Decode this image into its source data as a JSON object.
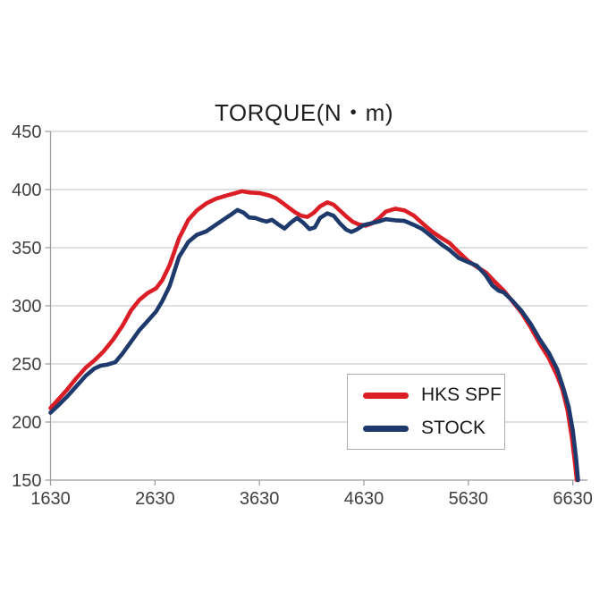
{
  "title": "TORQUE(N・m)",
  "colors": {
    "hks": "#db1e26",
    "stock": "#1e3a6c",
    "grid": "#c9cdd1",
    "axis": "#9b9ea2",
    "tick_text": "#404040",
    "legend_border": "#a9aeb4"
  },
  "legend": {
    "items": [
      {
        "label": "HKS SPF",
        "color_key": "hks"
      },
      {
        "label": "STOCK",
        "color_key": "stock"
      }
    ]
  },
  "chart_data": {
    "type": "line",
    "title": "TORQUE(N・m)",
    "xlabel": "",
    "ylabel": "",
    "xlim": [
      1630,
      6770
    ],
    "ylim": [
      150,
      450
    ],
    "x_ticks": [
      1630,
      2630,
      3630,
      4630,
      5630,
      6630
    ],
    "y_ticks": [
      150,
      200,
      250,
      300,
      350,
      400,
      450
    ],
    "grid": "horizontal",
    "legend_position": "lower-right",
    "series": [
      {
        "name": "HKS SPF",
        "color_key": "hks",
        "points": [
          [
            1630,
            212
          ],
          [
            1700,
            219
          ],
          [
            1790,
            228
          ],
          [
            1880,
            238
          ],
          [
            1970,
            247
          ],
          [
            2050,
            253
          ],
          [
            2140,
            261
          ],
          [
            2230,
            271
          ],
          [
            2320,
            283
          ],
          [
            2400,
            296
          ],
          [
            2480,
            305
          ],
          [
            2560,
            311
          ],
          [
            2640,
            315
          ],
          [
            2700,
            322
          ],
          [
            2770,
            335
          ],
          [
            2860,
            358
          ],
          [
            2950,
            374
          ],
          [
            3030,
            382
          ],
          [
            3120,
            388
          ],
          [
            3210,
            392
          ],
          [
            3300,
            394.5
          ],
          [
            3380,
            396.5
          ],
          [
            3460,
            398.5
          ],
          [
            3540,
            397.5
          ],
          [
            3630,
            397
          ],
          [
            3720,
            395
          ],
          [
            3790,
            392.5
          ],
          [
            3850,
            388.5
          ],
          [
            3910,
            384.5
          ],
          [
            3970,
            380.5
          ],
          [
            4030,
            377.5
          ],
          [
            4090,
            376.5
          ],
          [
            4150,
            380
          ],
          [
            4210,
            385.5
          ],
          [
            4280,
            389
          ],
          [
            4340,
            387
          ],
          [
            4400,
            382
          ],
          [
            4460,
            377
          ],
          [
            4520,
            372.5
          ],
          [
            4580,
            370
          ],
          [
            4650,
            369
          ],
          [
            4710,
            371
          ],
          [
            4770,
            375
          ],
          [
            4840,
            381
          ],
          [
            4930,
            383.5
          ],
          [
            5020,
            382
          ],
          [
            5110,
            377.5
          ],
          [
            5190,
            371
          ],
          [
            5280,
            364
          ],
          [
            5370,
            358.5
          ],
          [
            5450,
            354
          ],
          [
            5540,
            346
          ],
          [
            5630,
            338.5
          ],
          [
            5710,
            333.5
          ],
          [
            5800,
            328.5
          ],
          [
            5880,
            321
          ],
          [
            5970,
            313
          ],
          [
            6050,
            304
          ],
          [
            6140,
            294
          ],
          [
            6230,
            281
          ],
          [
            6310,
            268
          ],
          [
            6400,
            255
          ],
          [
            6480,
            240
          ],
          [
            6530,
            228
          ],
          [
            6580,
            210
          ],
          [
            6620,
            187
          ],
          [
            6650,
            165
          ],
          [
            6668,
            150
          ]
        ]
      },
      {
        "name": "STOCK",
        "color_key": "stock",
        "points": [
          [
            1630,
            208
          ],
          [
            1700,
            214
          ],
          [
            1790,
            222
          ],
          [
            1880,
            231
          ],
          [
            1970,
            240
          ],
          [
            2050,
            246
          ],
          [
            2110,
            248.5
          ],
          [
            2180,
            249.5
          ],
          [
            2250,
            251.5
          ],
          [
            2320,
            259
          ],
          [
            2400,
            269
          ],
          [
            2480,
            279
          ],
          [
            2560,
            287
          ],
          [
            2640,
            295
          ],
          [
            2700,
            304
          ],
          [
            2770,
            317
          ],
          [
            2860,
            342
          ],
          [
            2950,
            355
          ],
          [
            3030,
            361
          ],
          [
            3120,
            364
          ],
          [
            3210,
            369.5
          ],
          [
            3300,
            375
          ],
          [
            3360,
            378.5
          ],
          [
            3420,
            382.5
          ],
          [
            3480,
            380
          ],
          [
            3530,
            376
          ],
          [
            3590,
            375.5
          ],
          [
            3650,
            373.5
          ],
          [
            3700,
            372.5
          ],
          [
            3750,
            374
          ],
          [
            3810,
            370
          ],
          [
            3870,
            366.5
          ],
          [
            3930,
            371.5
          ],
          [
            3990,
            375.5
          ],
          [
            4050,
            371.5
          ],
          [
            4110,
            366
          ],
          [
            4160,
            367.5
          ],
          [
            4210,
            375.5
          ],
          [
            4280,
            379.5
          ],
          [
            4340,
            377.5
          ],
          [
            4400,
            371
          ],
          [
            4460,
            365.5
          ],
          [
            4510,
            363.5
          ],
          [
            4560,
            365.5
          ],
          [
            4630,
            369.5
          ],
          [
            4700,
            371
          ],
          [
            4770,
            372.5
          ],
          [
            4840,
            374.5
          ],
          [
            4930,
            373.5
          ],
          [
            5020,
            373
          ],
          [
            5110,
            369.5
          ],
          [
            5190,
            366
          ],
          [
            5280,
            359.5
          ],
          [
            5370,
            353
          ],
          [
            5450,
            348
          ],
          [
            5540,
            341
          ],
          [
            5630,
            337.5
          ],
          [
            5710,
            334.5
          ],
          [
            5790,
            327
          ],
          [
            5860,
            317.5
          ],
          [
            5920,
            313
          ],
          [
            5970,
            311.5
          ],
          [
            6050,
            304.5
          ],
          [
            6140,
            295.5
          ],
          [
            6230,
            284
          ],
          [
            6310,
            271.5
          ],
          [
            6400,
            259.5
          ],
          [
            6480,
            245.5
          ],
          [
            6540,
            229
          ],
          [
            6590,
            213
          ],
          [
            6630,
            193
          ],
          [
            6662,
            168
          ],
          [
            6680,
            150
          ]
        ]
      }
    ]
  }
}
